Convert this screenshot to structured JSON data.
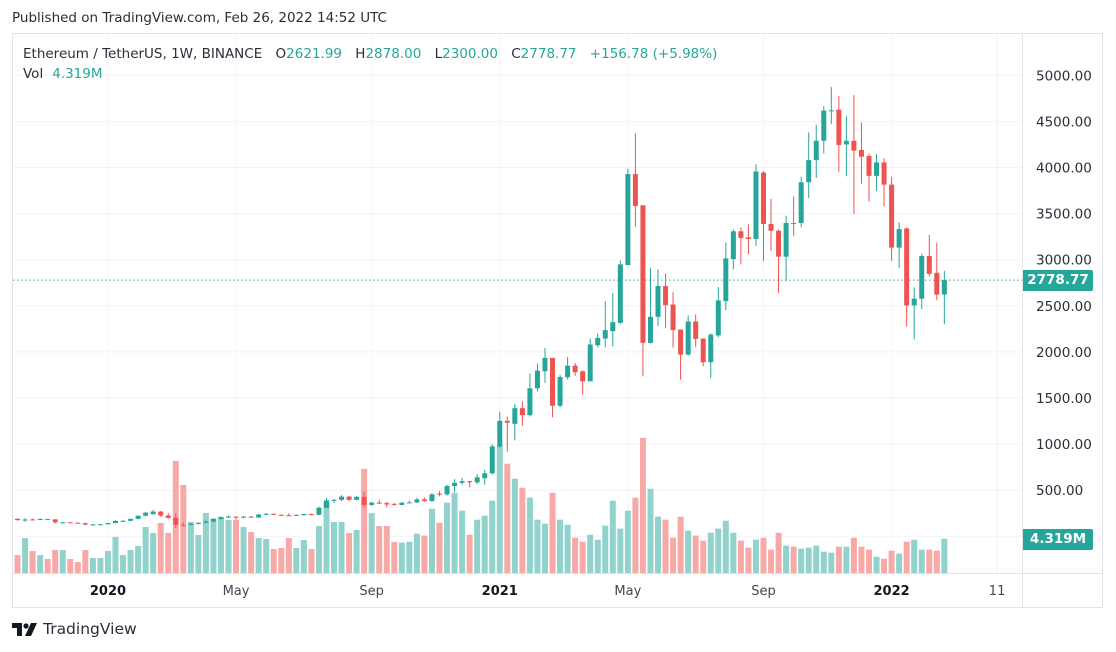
{
  "header": {
    "published": "Published on TradingView.com, Feb 26, 2022 14:52 UTC"
  },
  "legend": {
    "symbol": "Ethereum / TetherUS, 1W, BINANCE",
    "o_label": "O",
    "o": "2621.99",
    "h_label": "H",
    "h": "2878.00",
    "l_label": "L",
    "l": "2300.00",
    "c_label": "C",
    "c": "2778.77",
    "change": "+156.78 (+5.98%)",
    "vol_label": "Vol",
    "vol": "4.319M"
  },
  "last_price_tag": "2778.77",
  "last_volume_tag": "4.319M",
  "footer": {
    "brand": "TradingView"
  },
  "colors": {
    "up": "#26a69a",
    "down": "#ef5350",
    "vol_up": "#92d2cc",
    "vol_down": "#f7a9a7",
    "grid": "#f0f3fa"
  },
  "chart_data": {
    "type": "candlestick",
    "title": "Ethereum / TetherUS, 1W, BINANCE",
    "ylim": [
      0,
      5400
    ],
    "y_ticks": [
      "500.00",
      "1000.00",
      "1500.00",
      "2000.00",
      "2500.00",
      "3000.00",
      "3500.00",
      "4000.00",
      "4500.00",
      "5000.00"
    ],
    "x_ticks": [
      {
        "label": "2020",
        "date": "2020-01-06",
        "bold": true
      },
      {
        "label": "May",
        "date": "2020-05-04",
        "bold": false
      },
      {
        "label": "Sep",
        "date": "2020-09-07",
        "bold": false
      },
      {
        "label": "2021",
        "date": "2021-01-04",
        "bold": true
      },
      {
        "label": "May",
        "date": "2021-05-03",
        "bold": false
      },
      {
        "label": "Sep",
        "date": "2021-09-06",
        "bold": false
      },
      {
        "label": "2022",
        "date": "2022-01-03",
        "bold": true
      },
      {
        "label": "11",
        "date": "2022-04-11",
        "bold": false
      }
    ],
    "columns": [
      "week",
      "open",
      "high",
      "low",
      "close",
      "volume_m"
    ],
    "candles": [
      [
        "2019-10-07",
        180,
        199,
        176,
        190,
        3.0
      ],
      [
        "2019-10-14",
        190,
        192,
        170,
        175,
        2.26
      ],
      [
        "2019-10-21",
        175,
        198,
        158,
        182,
        4.4
      ],
      [
        "2019-10-28",
        183,
        191,
        177,
        181,
        2.77
      ],
      [
        "2019-11-04",
        181,
        197,
        180,
        187,
        2.26
      ],
      [
        "2019-11-11",
        187,
        190,
        178,
        184,
        1.76
      ],
      [
        "2019-11-18",
        184,
        185,
        139,
        151,
        2.89
      ],
      [
        "2019-11-25",
        148,
        157,
        142,
        152,
        2.89
      ],
      [
        "2019-12-02",
        152,
        154,
        143,
        147,
        1.76
      ],
      [
        "2019-12-09",
        147,
        152,
        139,
        142,
        1.38
      ],
      [
        "2019-12-16",
        142,
        146,
        117,
        128,
        2.89
      ],
      [
        "2019-12-23",
        128,
        135,
        124,
        129,
        1.89
      ],
      [
        "2019-12-30",
        129,
        136,
        125,
        130,
        1.89
      ],
      [
        "2020-01-06",
        130,
        148,
        128,
        144,
        2.77
      ],
      [
        "2020-01-13",
        144,
        175,
        141,
        167,
        4.53
      ],
      [
        "2020-01-20",
        167,
        176,
        156,
        168,
        2.26
      ],
      [
        "2020-01-27",
        168,
        190,
        164,
        189,
        2.89
      ],
      [
        "2020-02-03",
        189,
        225,
        185,
        223,
        3.4
      ],
      [
        "2020-02-10",
        223,
        265,
        215,
        256,
        5.79
      ],
      [
        "2020-02-17",
        240,
        288,
        235,
        268,
        5.03
      ],
      [
        "2020-02-24",
        268,
        275,
        210,
        225,
        6.29
      ],
      [
        "2020-03-02",
        225,
        252,
        190,
        200,
        5.03
      ],
      [
        "2020-03-09",
        200,
        250,
        90,
        125,
        14.1
      ],
      [
        "2020-03-16",
        125,
        150,
        108,
        123,
        11.07
      ],
      [
        "2020-03-23",
        123,
        145,
        118,
        135,
        6.42
      ],
      [
        "2020-03-30",
        135,
        152,
        128,
        147,
        4.78
      ],
      [
        "2020-04-06",
        147,
        175,
        143,
        160,
        7.55
      ],
      [
        "2020-04-13",
        160,
        195,
        150,
        190,
        6.79
      ],
      [
        "2020-04-20",
        190,
        215,
        180,
        207,
        7.04
      ],
      [
        "2020-04-27",
        207,
        227,
        200,
        213,
        6.67
      ],
      [
        "2020-05-04",
        213,
        218,
        180,
        207,
        6.67
      ],
      [
        "2020-05-11",
        207,
        220,
        195,
        213,
        5.79
      ],
      [
        "2020-05-18",
        213,
        220,
        200,
        204,
        5.16
      ],
      [
        "2020-05-25",
        204,
        245,
        200,
        236,
        4.4
      ],
      [
        "2020-06-01",
        236,
        252,
        228,
        244,
        4.28
      ],
      [
        "2020-06-08",
        244,
        250,
        228,
        233,
        3.02
      ],
      [
        "2020-06-15",
        233,
        240,
        222,
        228,
        3.14
      ],
      [
        "2020-06-22",
        228,
        250,
        220,
        226,
        4.4
      ],
      [
        "2020-06-29",
        226,
        236,
        222,
        232,
        3.14
      ],
      [
        "2020-07-06",
        228,
        245,
        225,
        241,
        4.15
      ],
      [
        "2020-07-13",
        241,
        245,
        228,
        233,
        3.02
      ],
      [
        "2020-07-20",
        233,
        320,
        230,
        310,
        5.91
      ],
      [
        "2020-07-27",
        310,
        415,
        305,
        390,
        8.93
      ],
      [
        "2020-08-03",
        385,
        405,
        360,
        395,
        6.42
      ],
      [
        "2020-08-10",
        395,
        445,
        380,
        430,
        6.42
      ],
      [
        "2020-08-17",
        430,
        440,
        380,
        395,
        5.03
      ],
      [
        "2020-08-24",
        395,
        440,
        390,
        428,
        5.41
      ],
      [
        "2020-08-31",
        428,
        488,
        310,
        340,
        13.1
      ],
      [
        "2020-09-07",
        340,
        375,
        330,
        365,
        7.55
      ],
      [
        "2020-09-14",
        365,
        395,
        350,
        360,
        5.91
      ],
      [
        "2020-09-21",
        360,
        375,
        315,
        345,
        5.91
      ],
      [
        "2020-09-28",
        352,
        360,
        330,
        348,
        3.9
      ],
      [
        "2020-10-05",
        340,
        372,
        335,
        365,
        3.82
      ],
      [
        "2020-10-12",
        365,
        390,
        360,
        368,
        3.94
      ],
      [
        "2020-10-19",
        368,
        418,
        360,
        400,
        4.95
      ],
      [
        "2020-10-26",
        400,
        420,
        375,
        382,
        4.7
      ],
      [
        "2020-11-02",
        382,
        470,
        375,
        455,
        8.09
      ],
      [
        "2020-11-09",
        462,
        490,
        435,
        455,
        6.33
      ],
      [
        "2020-11-16",
        455,
        560,
        440,
        545,
        8.85
      ],
      [
        "2020-11-23",
        545,
        620,
        480,
        580,
        10.1
      ],
      [
        "2020-11-30",
        580,
        635,
        560,
        598,
        7.84
      ],
      [
        "2020-12-07",
        598,
        600,
        530,
        585,
        4.82
      ],
      [
        "2020-12-14",
        585,
        675,
        565,
        640,
        6.71
      ],
      [
        "2020-12-21",
        630,
        720,
        560,
        683,
        7.21
      ],
      [
        "2020-12-28",
        683,
        1000,
        670,
        975,
        9.1
      ],
      [
        "2021-01-04",
        975,
        1350,
        960,
        1252,
        16.1
      ],
      [
        "2021-01-11",
        1252,
        1300,
        918,
        1232,
        13.75
      ],
      [
        "2021-01-18",
        1220,
        1436,
        1040,
        1390,
        11.87
      ],
      [
        "2021-01-25",
        1390,
        1466,
        1200,
        1314,
        10.73
      ],
      [
        "2021-02-01",
        1314,
        1764,
        1300,
        1605,
        9.48
      ],
      [
        "2021-02-08",
        1605,
        1873,
        1572,
        1797,
        6.71
      ],
      [
        "2021-02-15",
        1790,
        2043,
        1663,
        1935,
        6.2
      ],
      [
        "2021-02-22",
        1935,
        1935,
        1290,
        1416,
        10.1
      ],
      [
        "2021-03-01",
        1416,
        1750,
        1400,
        1728,
        6.71
      ],
      [
        "2021-03-08",
        1725,
        1946,
        1700,
        1851,
        6.08
      ],
      [
        "2021-03-15",
        1851,
        1880,
        1740,
        1779,
        4.44
      ],
      [
        "2021-03-22",
        1790,
        1800,
        1536,
        1681,
        3.94
      ],
      [
        "2021-03-29",
        1681,
        2145,
        1681,
        2080,
        4.82
      ],
      [
        "2021-04-05",
        2072,
        2200,
        2050,
        2152,
        4.19
      ],
      [
        "2021-04-12",
        2145,
        2551,
        2050,
        2236,
        5.95
      ],
      [
        "2021-04-19",
        2225,
        2641,
        2061,
        2322,
        9.1
      ],
      [
        "2021-04-26",
        2315,
        2990,
        2300,
        2949,
        5.58
      ],
      [
        "2021-05-03",
        2942,
        3989,
        2942,
        3928,
        7.84
      ],
      [
        "2021-05-10",
        3928,
        4373,
        3355,
        3583,
        9.48
      ],
      [
        "2021-05-17",
        3590,
        3590,
        1735,
        2098,
        17.0
      ],
      [
        "2021-05-24",
        2098,
        2913,
        2090,
        2380,
        10.6
      ],
      [
        "2021-05-31",
        2380,
        2895,
        2279,
        2714,
        7.09
      ],
      [
        "2021-06-07",
        2714,
        2851,
        2257,
        2507,
        6.71
      ],
      [
        "2021-06-14",
        2514,
        2649,
        2047,
        2236,
        4.44
      ],
      [
        "2021-06-21",
        2243,
        2243,
        1699,
        1971,
        7.09
      ],
      [
        "2021-06-28",
        1971,
        2395,
        1960,
        2330,
        5.32
      ],
      [
        "2021-07-05",
        2330,
        2406,
        2051,
        2141,
        4.7
      ],
      [
        "2021-07-12",
        2145,
        2145,
        1844,
        1888,
        4.07
      ],
      [
        "2021-07-19",
        1888,
        2200,
        1714,
        2188,
        5.07
      ],
      [
        "2021-07-26",
        2178,
        2703,
        2160,
        2558,
        5.58
      ],
      [
        "2021-08-02",
        2551,
        3185,
        2453,
        3014,
        6.58
      ],
      [
        "2021-08-09",
        3007,
        3330,
        2895,
        3308,
        5.07
      ],
      [
        "2021-08-16",
        3308,
        3348,
        2949,
        3236,
        4.07
      ],
      [
        "2021-08-23",
        3243,
        3384,
        3058,
        3225,
        3.19
      ],
      [
        "2021-08-30",
        3225,
        4036,
        3150,
        3957,
        4.19
      ],
      [
        "2021-09-06",
        3945,
        3960,
        2985,
        3387,
        4.44
      ],
      [
        "2021-09-13",
        3387,
        3660,
        3095,
        3314,
        2.94
      ],
      [
        "2021-09-20",
        3314,
        3330,
        2639,
        3033,
        5.07
      ],
      [
        "2021-09-27",
        3033,
        3478,
        2766,
        3398,
        3.44
      ],
      [
        "2021-10-04",
        3398,
        3686,
        3259,
        3395,
        3.31
      ],
      [
        "2021-10-11",
        3398,
        3900,
        3350,
        3840,
        3.06
      ],
      [
        "2021-10-18",
        3840,
        4380,
        3668,
        4080,
        3.19
      ],
      [
        "2021-10-25",
        4080,
        4463,
        3887,
        4290,
        3.44
      ],
      [
        "2021-11-01",
        4290,
        4664,
        4153,
        4617,
        2.68
      ],
      [
        "2021-11-08",
        4617,
        4872,
        4471,
        4620,
        2.56
      ],
      [
        "2021-11-15",
        4628,
        4774,
        3953,
        4244,
        3.31
      ],
      [
        "2021-11-22",
        4250,
        4555,
        3905,
        4290,
        3.31
      ],
      [
        "2021-11-29",
        4290,
        4785,
        3496,
        4183,
        4.44
      ],
      [
        "2021-12-06",
        4190,
        4489,
        3825,
        4117,
        3.31
      ],
      [
        "2021-12-13",
        4124,
        4150,
        3631,
        3909,
        2.94
      ],
      [
        "2021-12-20",
        3909,
        4146,
        3745,
        4055,
        2.05
      ],
      [
        "2021-12-27",
        4055,
        4100,
        3577,
        3814,
        1.8
      ],
      [
        "2022-01-03",
        3814,
        3898,
        2985,
        3131,
        2.81
      ],
      [
        "2022-01-10",
        3131,
        3405,
        2912,
        3332,
        2.43
      ],
      [
        "2022-01-17",
        3339,
        3350,
        2274,
        2504,
        3.94
      ],
      [
        "2022-01-24",
        2504,
        2700,
        2135,
        2577,
        4.19
      ],
      [
        "2022-01-31",
        2577,
        3066,
        2463,
        3040,
        2.94
      ],
      [
        "2022-02-07",
        3040,
        3270,
        2820,
        2847,
        2.94
      ],
      [
        "2022-02-14",
        2858,
        3186,
        2560,
        2622,
        2.81
      ],
      [
        "2022-02-21",
        2621.99,
        2878,
        2300,
        2778.77,
        4.319
      ]
    ],
    "last_price": 2778.77
  }
}
